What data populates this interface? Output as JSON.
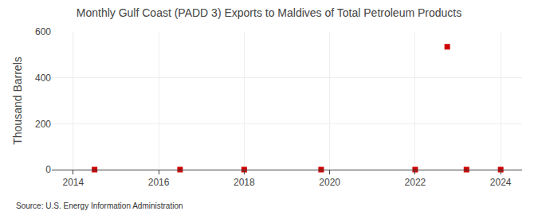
{
  "chart_data": {
    "type": "scatter",
    "title": "Monthly Gulf Coast (PADD 3) Exports to Maldives of Total Petroleum Products",
    "ylabel": "Thousand Barrels",
    "annotations": [
      "Source: U.S. Energy Information Administration"
    ],
    "x": [
      2014.5,
      2016.5,
      2018.0,
      2019.8,
      2022.0,
      2022.75,
      2023.2,
      2024.0
    ],
    "values": [
      0,
      0,
      0,
      0,
      0,
      535,
      0,
      0
    ],
    "color": "#cc0000",
    "marker": "square",
    "xlim": [
      2013.5,
      2024.5
    ],
    "ylim": [
      0,
      600
    ],
    "xticks": [
      2014,
      2016,
      2018,
      2020,
      2022,
      2024
    ],
    "yticks": [
      0,
      200,
      400,
      600
    ],
    "grid": true
  }
}
